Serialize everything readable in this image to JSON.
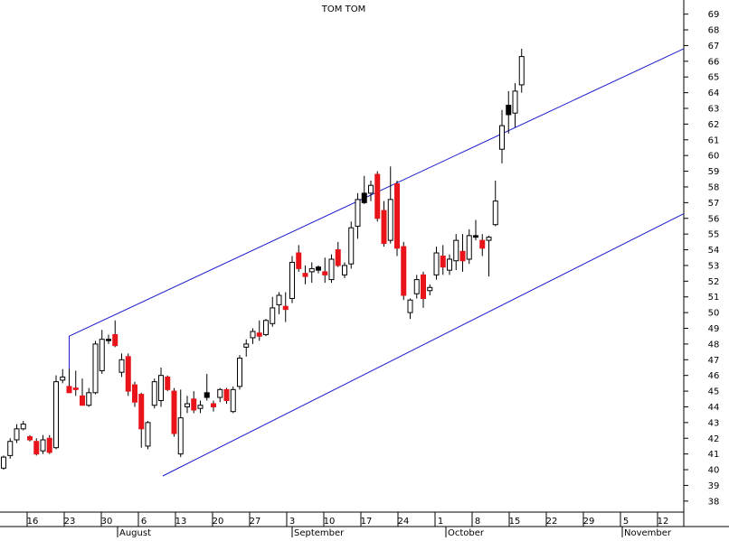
{
  "chart_data": {
    "type": "candlestick",
    "title": "TOM TOM",
    "xlabel": "",
    "ylabel": "",
    "ylim": [
      37.3,
      69.9
    ],
    "y_ticks": [
      38,
      39,
      40,
      41,
      42,
      43,
      44,
      45,
      46,
      47,
      48,
      49,
      50,
      51,
      52,
      53,
      54,
      55,
      56,
      57,
      58,
      59,
      60,
      61,
      62,
      63,
      64,
      65,
      66,
      67,
      68,
      69
    ],
    "x_day_ticks": [
      "16",
      "23",
      "30",
      "6",
      "13",
      "20",
      "27",
      "3",
      "10",
      "17",
      "24",
      "1",
      "8",
      "15",
      "22",
      "29",
      "5",
      "12"
    ],
    "month_labels": [
      "August",
      "September",
      "October",
      "November"
    ],
    "grid": false,
    "colors": {
      "up_body": "#ffffff",
      "down_body": "#e8141a",
      "black_body": "#000000",
      "outline": "#000000",
      "channel": "#1a1acc"
    },
    "candles": [
      {
        "o": 40.1,
        "h": 40.9,
        "l": 40.0,
        "c": 40.8,
        "col": "up"
      },
      {
        "o": 40.9,
        "h": 42.0,
        "l": 40.7,
        "c": 41.8,
        "col": "up"
      },
      {
        "o": 41.9,
        "h": 42.9,
        "l": 41.7,
        "c": 42.6,
        "col": "up"
      },
      {
        "o": 42.6,
        "h": 43.1,
        "l": 42.5,
        "c": 42.9,
        "col": "up"
      },
      {
        "o": 42.1,
        "h": 42.2,
        "l": 41.8,
        "c": 41.9,
        "col": "down"
      },
      {
        "o": 41.8,
        "h": 42.0,
        "l": 40.9,
        "c": 41.0,
        "col": "down"
      },
      {
        "o": 41.2,
        "h": 42.2,
        "l": 41.0,
        "c": 41.9,
        "col": "up"
      },
      {
        "o": 42.0,
        "h": 42.2,
        "l": 41.0,
        "c": 41.1,
        "col": "down"
      },
      {
        "o": 41.4,
        "h": 46.0,
        "l": 41.3,
        "c": 45.6,
        "col": "up"
      },
      {
        "o": 45.7,
        "h": 46.4,
        "l": 45.5,
        "c": 45.9,
        "col": "up"
      },
      {
        "o": 45.3,
        "h": 46.4,
        "l": 45.0,
        "c": 44.9,
        "col": "down"
      },
      {
        "o": 45.1,
        "h": 46.3,
        "l": 44.7,
        "c": 45.2,
        "col": "down"
      },
      {
        "o": 44.7,
        "h": 45.8,
        "l": 44.1,
        "c": 44.1,
        "col": "down"
      },
      {
        "o": 44.1,
        "h": 45.2,
        "l": 44.0,
        "c": 44.9,
        "col": "up"
      },
      {
        "o": 44.9,
        "h": 48.2,
        "l": 44.8,
        "c": 48.0,
        "col": "up"
      },
      {
        "o": 46.3,
        "h": 48.9,
        "l": 46.1,
        "c": 48.3,
        "col": "up"
      },
      {
        "o": 48.3,
        "h": 48.6,
        "l": 48.0,
        "c": 48.3,
        "col": "black"
      },
      {
        "o": 48.6,
        "h": 49.5,
        "l": 47.8,
        "c": 47.9,
        "col": "down"
      },
      {
        "o": 46.2,
        "h": 47.4,
        "l": 45.9,
        "c": 47.0,
        "col": "up"
      },
      {
        "o": 47.2,
        "h": 47.4,
        "l": 44.7,
        "c": 45.0,
        "col": "down"
      },
      {
        "o": 45.4,
        "h": 45.6,
        "l": 44.0,
        "c": 44.3,
        "col": "down"
      },
      {
        "o": 44.8,
        "h": 44.9,
        "l": 41.4,
        "c": 42.6,
        "col": "down"
      },
      {
        "o": 41.5,
        "h": 43.1,
        "l": 41.3,
        "c": 43.0,
        "col": "up"
      },
      {
        "o": 44.1,
        "h": 45.8,
        "l": 43.9,
        "c": 45.6,
        "col": "up"
      },
      {
        "o": 44.4,
        "h": 46.5,
        "l": 44.0,
        "c": 46.0,
        "col": "up"
      },
      {
        "o": 45.9,
        "h": 46.0,
        "l": 45.0,
        "c": 45.1,
        "col": "down"
      },
      {
        "o": 45.0,
        "h": 45.2,
        "l": 42.1,
        "c": 42.3,
        "col": "down"
      },
      {
        "o": 41.0,
        "h": 45.1,
        "l": 40.8,
        "c": 43.3,
        "col": "up"
      },
      {
        "o": 44.0,
        "h": 44.7,
        "l": 43.6,
        "c": 44.2,
        "col": "up"
      },
      {
        "o": 44.5,
        "h": 45.0,
        "l": 43.6,
        "c": 43.8,
        "col": "down"
      },
      {
        "o": 43.9,
        "h": 44.4,
        "l": 43.6,
        "c": 44.1,
        "col": "up"
      },
      {
        "o": 44.6,
        "h": 46.1,
        "l": 44.4,
        "c": 44.9,
        "col": "black"
      },
      {
        "o": 44.2,
        "h": 44.4,
        "l": 43.7,
        "c": 44.0,
        "col": "down"
      },
      {
        "o": 44.6,
        "h": 45.2,
        "l": 44.3,
        "c": 45.1,
        "col": "up"
      },
      {
        "o": 45.1,
        "h": 45.2,
        "l": 44.2,
        "c": 44.4,
        "col": "down"
      },
      {
        "o": 43.7,
        "h": 45.3,
        "l": 43.6,
        "c": 45.1,
        "col": "up"
      },
      {
        "o": 45.3,
        "h": 47.3,
        "l": 45.1,
        "c": 47.1,
        "col": "up"
      },
      {
        "o": 47.8,
        "h": 48.3,
        "l": 47.2,
        "c": 48.0,
        "col": "up"
      },
      {
        "o": 48.4,
        "h": 49.0,
        "l": 48.0,
        "c": 48.8,
        "col": "up"
      },
      {
        "o": 48.7,
        "h": 49.5,
        "l": 48.2,
        "c": 48.5,
        "col": "down"
      },
      {
        "o": 48.6,
        "h": 49.6,
        "l": 48.5,
        "c": 49.5,
        "col": "up"
      },
      {
        "o": 49.3,
        "h": 51.0,
        "l": 49.1,
        "c": 50.3,
        "col": "up"
      },
      {
        "o": 50.5,
        "h": 51.3,
        "l": 49.9,
        "c": 51.1,
        "col": "up"
      },
      {
        "o": 50.4,
        "h": 51.3,
        "l": 49.4,
        "c": 50.2,
        "col": "down"
      },
      {
        "o": 50.9,
        "h": 53.6,
        "l": 50.6,
        "c": 53.2,
        "col": "up"
      },
      {
        "o": 53.8,
        "h": 54.3,
        "l": 52.6,
        "c": 52.8,
        "col": "down"
      },
      {
        "o": 52.5,
        "h": 53.0,
        "l": 51.8,
        "c": 52.3,
        "col": "down"
      },
      {
        "o": 52.6,
        "h": 53.2,
        "l": 51.9,
        "c": 52.8,
        "col": "up"
      },
      {
        "o": 52.7,
        "h": 53.0,
        "l": 52.5,
        "c": 52.9,
        "col": "black"
      },
      {
        "o": 52.4,
        "h": 53.5,
        "l": 51.9,
        "c": 52.6,
        "col": "down"
      },
      {
        "o": 52.1,
        "h": 53.7,
        "l": 51.9,
        "c": 53.4,
        "col": "up"
      },
      {
        "o": 54.0,
        "h": 54.5,
        "l": 52.9,
        "c": 53.0,
        "col": "down"
      },
      {
        "o": 53.0,
        "h": 53.2,
        "l": 52.2,
        "c": 52.4,
        "col": "up"
      },
      {
        "o": 53.1,
        "h": 55.8,
        "l": 52.8,
        "c": 55.4,
        "col": "up"
      },
      {
        "o": 55.5,
        "h": 57.6,
        "l": 54.7,
        "c": 57.2,
        "col": "up"
      },
      {
        "o": 57.0,
        "h": 58.7,
        "l": 56.9,
        "c": 57.6,
        "col": "black"
      },
      {
        "o": 57.6,
        "h": 58.4,
        "l": 57.1,
        "c": 58.1,
        "col": "up"
      },
      {
        "o": 58.8,
        "h": 59.0,
        "l": 55.8,
        "c": 56.0,
        "col": "down"
      },
      {
        "o": 56.5,
        "h": 57.1,
        "l": 54.2,
        "c": 54.4,
        "col": "down"
      },
      {
        "o": 54.6,
        "h": 59.3,
        "l": 54.4,
        "c": 57.2,
        "col": "up"
      },
      {
        "o": 58.2,
        "h": 58.4,
        "l": 53.6,
        "c": 54.1,
        "col": "down"
      },
      {
        "o": 54.2,
        "h": 54.5,
        "l": 50.8,
        "c": 51.1,
        "col": "down"
      },
      {
        "o": 50.0,
        "h": 50.9,
        "l": 49.6,
        "c": 50.8,
        "col": "up"
      },
      {
        "o": 51.2,
        "h": 52.4,
        "l": 50.9,
        "c": 52.1,
        "col": "up"
      },
      {
        "o": 52.4,
        "h": 52.6,
        "l": 50.3,
        "c": 50.9,
        "col": "down"
      },
      {
        "o": 51.4,
        "h": 51.8,
        "l": 51.1,
        "c": 51.6,
        "col": "up"
      },
      {
        "o": 52.4,
        "h": 54.2,
        "l": 52.1,
        "c": 53.8,
        "col": "up"
      },
      {
        "o": 53.6,
        "h": 54.3,
        "l": 52.4,
        "c": 52.9,
        "col": "down"
      },
      {
        "o": 52.7,
        "h": 53.7,
        "l": 52.4,
        "c": 53.4,
        "col": "up"
      },
      {
        "o": 54.6,
        "h": 55.0,
        "l": 52.7,
        "c": 53.3,
        "col": "up"
      },
      {
        "o": 53.9,
        "h": 55.0,
        "l": 52.6,
        "c": 53.3,
        "col": "down"
      },
      {
        "o": 53.4,
        "h": 55.3,
        "l": 53.1,
        "c": 54.9,
        "col": "up"
      },
      {
        "o": 54.8,
        "h": 55.9,
        "l": 54.6,
        "c": 54.9,
        "col": "black"
      },
      {
        "o": 54.6,
        "h": 55.0,
        "l": 53.6,
        "c": 54.1,
        "col": "down"
      },
      {
        "o": 54.8,
        "h": 54.9,
        "l": 52.3,
        "c": 54.6,
        "col": "up"
      },
      {
        "o": 55.6,
        "h": 58.4,
        "l": 55.5,
        "c": 57.1,
        "col": "up"
      },
      {
        "o": 60.4,
        "h": 62.9,
        "l": 59.5,
        "c": 61.9,
        "col": "up"
      },
      {
        "o": 62.6,
        "h": 64.1,
        "l": 61.4,
        "c": 63.2,
        "col": "black"
      },
      {
        "o": 62.7,
        "h": 64.6,
        "l": 61.8,
        "c": 64.1,
        "col": "up"
      },
      {
        "o": 64.5,
        "h": 66.8,
        "l": 64.0,
        "c": 66.3,
        "col": "up"
      }
    ],
    "channel_upper": {
      "y_start": 45.6,
      "y_hook": 48.5,
      "y_end": 66.8
    },
    "channel_lower": {
      "y_start": 39.6,
      "y_end": 56.3
    }
  }
}
